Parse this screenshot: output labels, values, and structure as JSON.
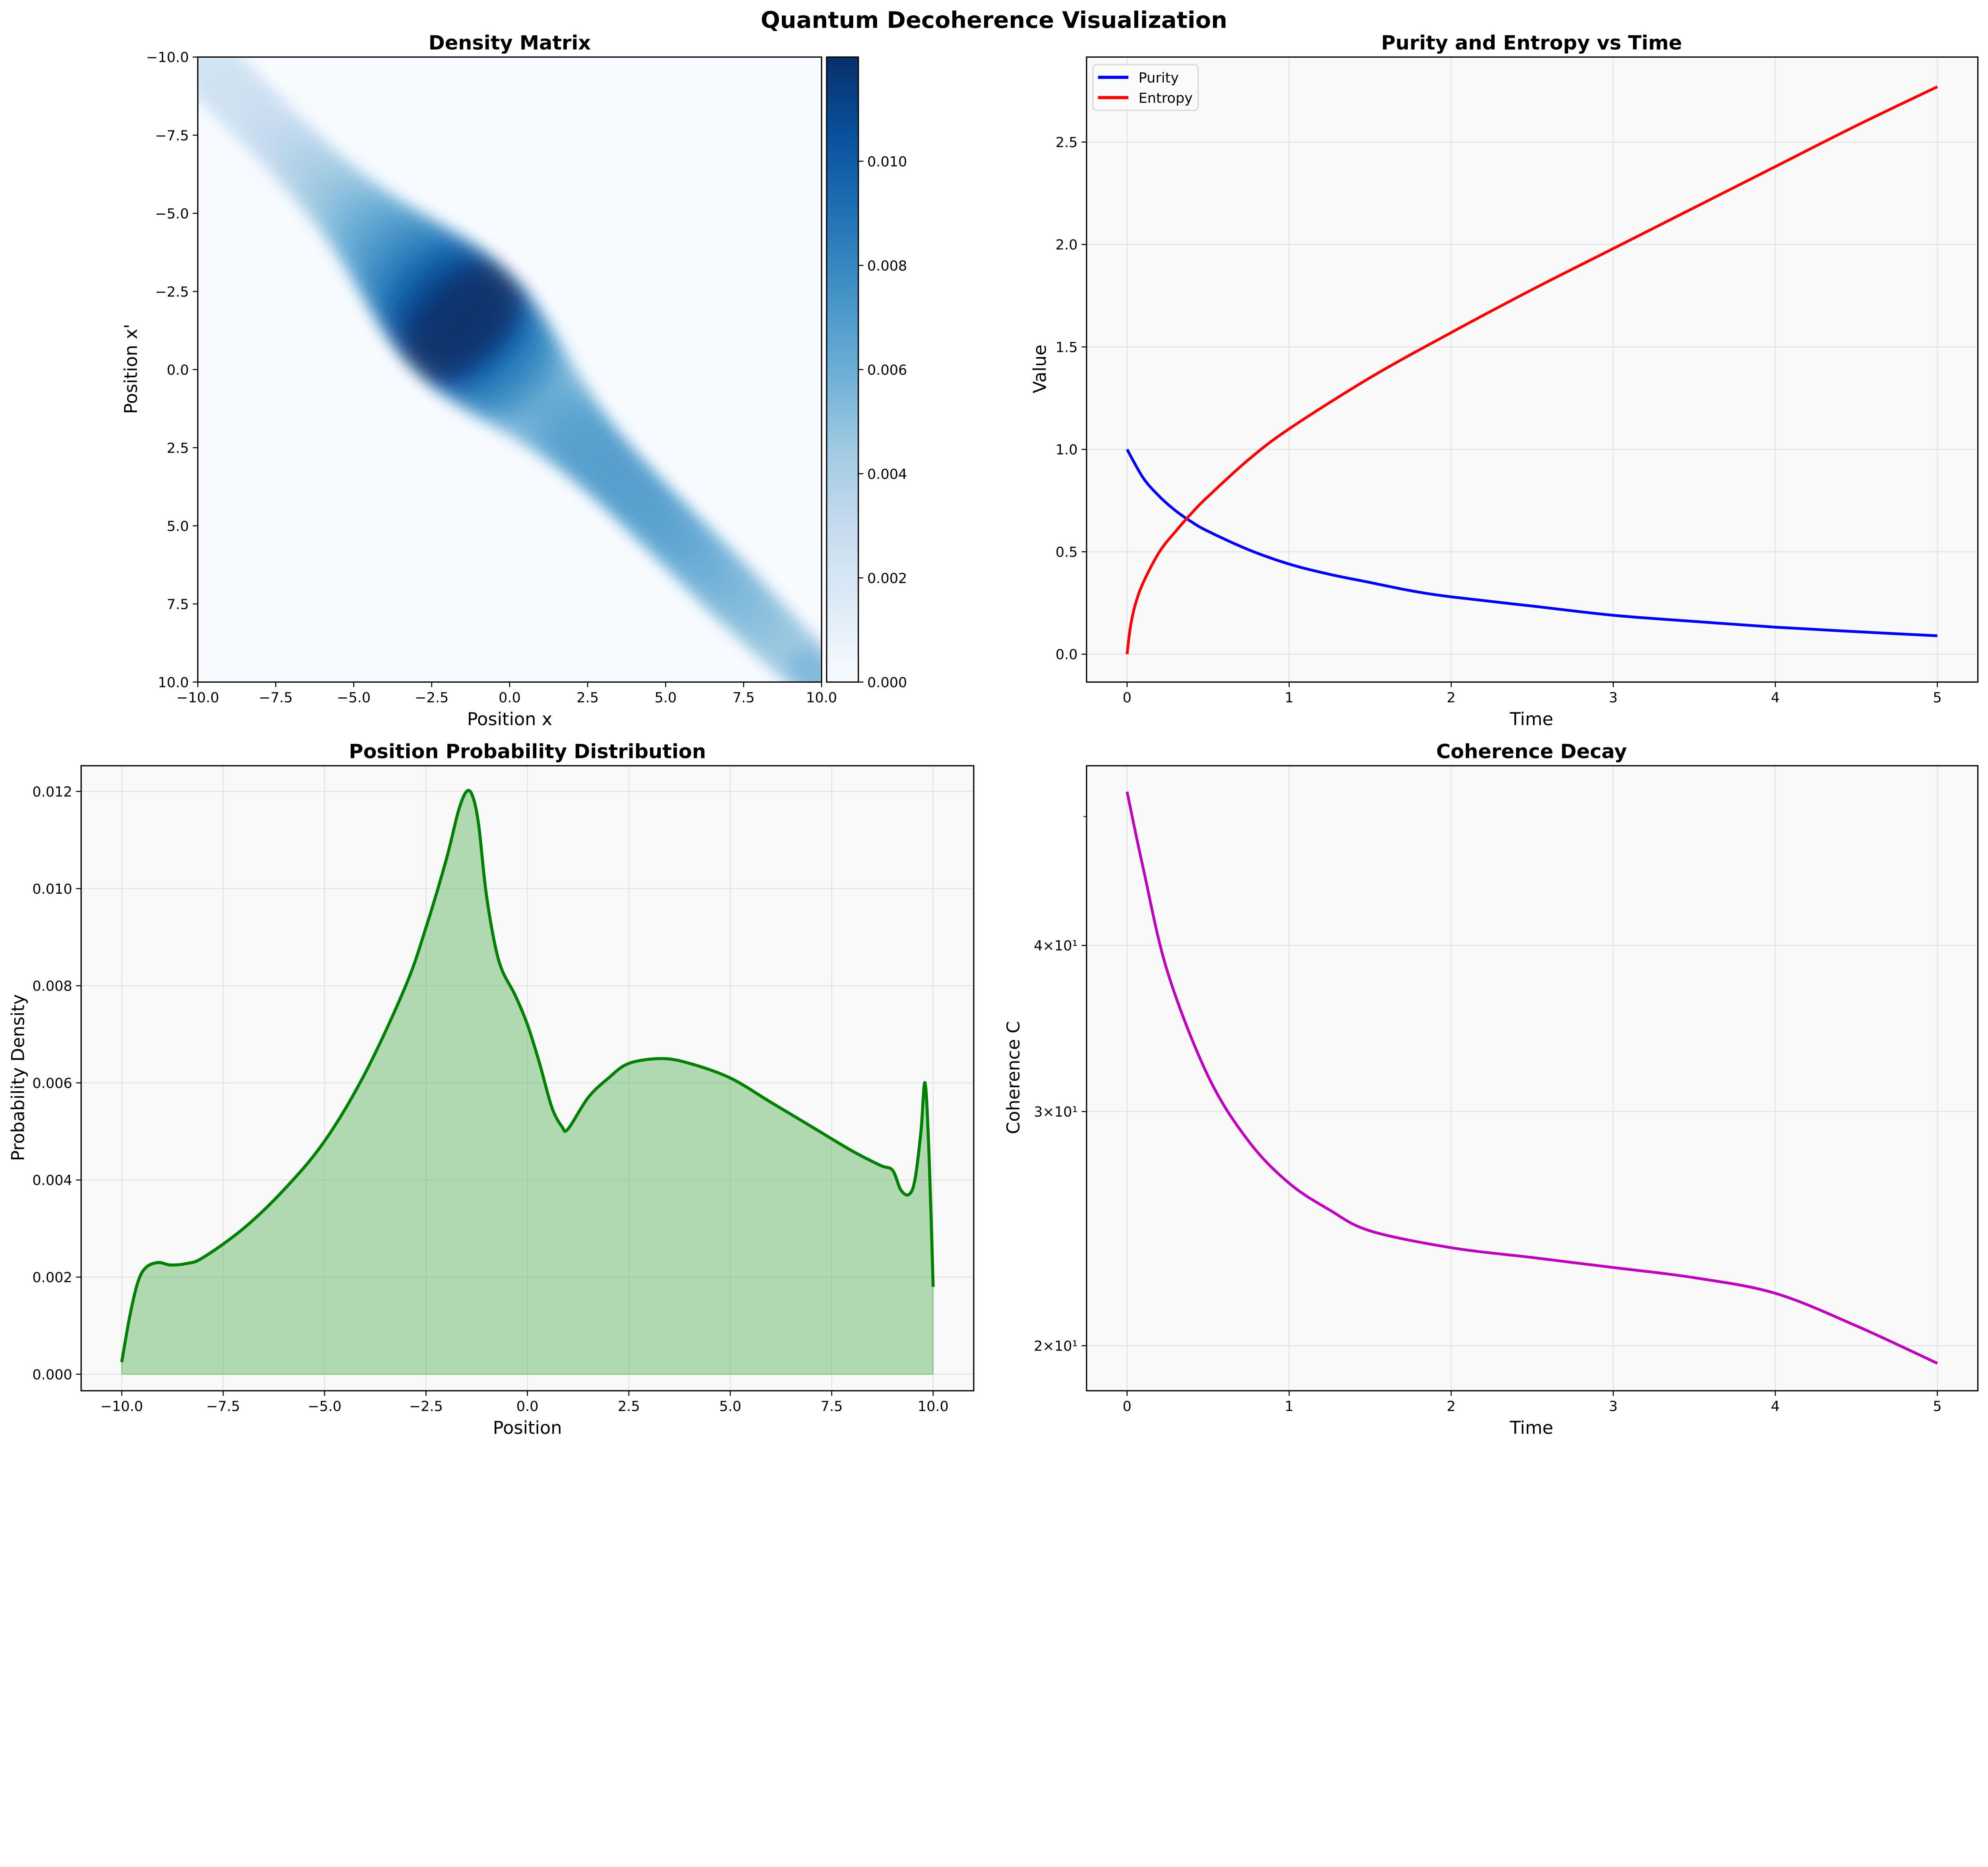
{
  "title": "Quantum Decoherence Visualization",
  "chart_data": [
    {
      "type": "heatmap",
      "title": "Density Matrix",
      "xlabel": "Position x",
      "ylabel": "Position x'",
      "xlim": [
        -10,
        10
      ],
      "ylim": [
        10,
        -10
      ],
      "xticks": [
        -10,
        -7.5,
        -5,
        -2.5,
        0,
        2.5,
        5,
        7.5,
        10
      ],
      "xtick_labels": [
        "−10.0",
        "−7.5",
        "−5.0",
        "−2.5",
        "0.0",
        "2.5",
        "5.0",
        "7.5",
        "10.0"
      ],
      "yticks": [
        -10,
        -7.5,
        -5,
        -2.5,
        0,
        2.5,
        5,
        7.5,
        10
      ],
      "ytick_labels": [
        "−10.0",
        "−7.5",
        "−5.0",
        "−2.5",
        "0.0",
        "2.5",
        "5.0",
        "7.5",
        "10.0"
      ],
      "colormap": "Blues",
      "peak": {
        "x": -1.5,
        "x_prime": -1.5,
        "value": 0.0119
      },
      "colorbar": {
        "range": [
          0,
          0.012
        ],
        "ticks": [
          0,
          0.002,
          0.004,
          0.006,
          0.008,
          0.01
        ],
        "tick_labels": [
          "0.000",
          "0.002",
          "0.004",
          "0.006",
          "0.008",
          "0.010"
        ]
      }
    },
    {
      "type": "line",
      "title": "Purity and Entropy vs Time",
      "xlabel": "Time",
      "ylabel": "Value",
      "xlim": [
        -0.25,
        5.25
      ],
      "ylim": [
        -0.136,
        2.915
      ],
      "xticks": [
        0,
        1,
        2,
        3,
        4,
        5
      ],
      "xtick_labels": [
        "0",
        "1",
        "2",
        "3",
        "4",
        "5"
      ],
      "yticks": [
        0,
        0.5,
        1,
        1.5,
        2,
        2.5
      ],
      "ytick_labels": [
        "0.0",
        "0.5",
        "1.0",
        "1.5",
        "2.0",
        "2.5"
      ],
      "grid": true,
      "legend": "top-left",
      "series": [
        {
          "name": "Purity",
          "color": "#0000ff",
          "x": [
            0,
            0.1,
            0.2,
            0.3,
            0.4,
            0.5,
            0.75,
            1,
            1.25,
            1.5,
            1.75,
            2,
            2.5,
            3,
            3.5,
            4,
            4.5,
            5
          ],
          "y": [
            1.0,
            0.86,
            0.77,
            0.7,
            0.645,
            0.6,
            0.51,
            0.44,
            0.39,
            0.35,
            0.31,
            0.28,
            0.235,
            0.19,
            0.16,
            0.132,
            0.11,
            0.09
          ]
        },
        {
          "name": "Entropy",
          "color": "#ff0000",
          "x": [
            0,
            0.02,
            0.05,
            0.1,
            0.2,
            0.3,
            0.4,
            0.5,
            0.75,
            1,
            1.5,
            2,
            2.5,
            3,
            3.5,
            4,
            4.5,
            5
          ],
          "y": [
            0,
            0.13,
            0.24,
            0.35,
            0.5,
            0.6,
            0.69,
            0.77,
            0.95,
            1.1,
            1.35,
            1.57,
            1.78,
            1.98,
            2.18,
            2.38,
            2.58,
            2.77
          ]
        }
      ]
    },
    {
      "type": "area",
      "title": "Position Probability Distribution",
      "xlabel": "Position",
      "ylabel": "Probability Density",
      "xlim": [
        -11,
        11
      ],
      "ylim": [
        -0.00034,
        0.01253
      ],
      "xticks": [
        -10,
        -7.5,
        -5,
        -2.5,
        0,
        2.5,
        5,
        7.5,
        10
      ],
      "xtick_labels": [
        "−10.0",
        "−7.5",
        "−5.0",
        "−2.5",
        "0.0",
        "2.5",
        "5.0",
        "7.5",
        "10.0"
      ],
      "yticks": [
        0,
        0.002,
        0.004,
        0.006,
        0.008,
        0.01,
        0.012
      ],
      "ytick_labels": [
        "0.000",
        "0.002",
        "0.004",
        "0.006",
        "0.008",
        "0.010",
        "0.012"
      ],
      "grid": true,
      "line_color": "#008000",
      "fill_color": "#4caf50",
      "x": [
        -10,
        -9.8,
        -9.6,
        -9.4,
        -9.1,
        -8.8,
        -8.4,
        -8,
        -7,
        -6,
        -5,
        -4,
        -3,
        -2.5,
        -2,
        -1.7,
        -1.5,
        -1.35,
        -1.2,
        -1.0,
        -0.7,
        -0.3,
        0,
        0.3,
        0.6,
        0.85,
        1.0,
        1.5,
        2,
        2.5,
        3.3,
        4,
        5,
        6,
        7,
        8,
        8.7,
        9.0,
        9.2,
        9.4,
        9.55,
        9.7,
        9.8,
        9.9,
        10
      ],
      "y": [
        0.00025,
        0.0012,
        0.0019,
        0.0022,
        0.0023,
        0.00225,
        0.00228,
        0.0024,
        0.003,
        0.0038,
        0.0048,
        0.0062,
        0.008,
        0.0092,
        0.0106,
        0.0116,
        0.012,
        0.0119,
        0.0113,
        0.0098,
        0.0085,
        0.0078,
        0.0072,
        0.0064,
        0.0055,
        0.0051,
        0.00505,
        0.0057,
        0.0061,
        0.0064,
        0.0065,
        0.0064,
        0.0061,
        0.0056,
        0.0051,
        0.0046,
        0.0043,
        0.0042,
        0.0038,
        0.0037,
        0.004,
        0.005,
        0.006,
        0.0045,
        0.0018
      ]
    },
    {
      "type": "line",
      "title": "Coherence Decay",
      "xlabel": "Time",
      "ylabel": "Coherence C",
      "yscale": "log",
      "xlim": [
        -0.25,
        5.25
      ],
      "ylim": [
        18.5,
        54.6
      ],
      "xticks": [
        0,
        1,
        2,
        3,
        4,
        5
      ],
      "xtick_labels": [
        "0",
        "1",
        "2",
        "3",
        "4",
        "5"
      ],
      "yticks": [
        20,
        30,
        40
      ],
      "ytick_labels": [
        "2×10¹",
        "3×10¹",
        "4×10¹"
      ],
      "minor_yticks": [
        50
      ],
      "grid": true,
      "series": [
        {
          "color": "#bf00bf",
          "x": [
            0,
            0.1,
            0.25,
            0.5,
            0.75,
            1,
            1.25,
            1.5,
            2,
            2.5,
            3,
            3.5,
            4,
            4.5,
            5
          ],
          "y": [
            52.2,
            45.7,
            38.2,
            31.9,
            28.5,
            26.5,
            25.3,
            24.4,
            23.7,
            23.3,
            22.9,
            22.5,
            21.9,
            20.7,
            19.4
          ]
        }
      ]
    }
  ]
}
